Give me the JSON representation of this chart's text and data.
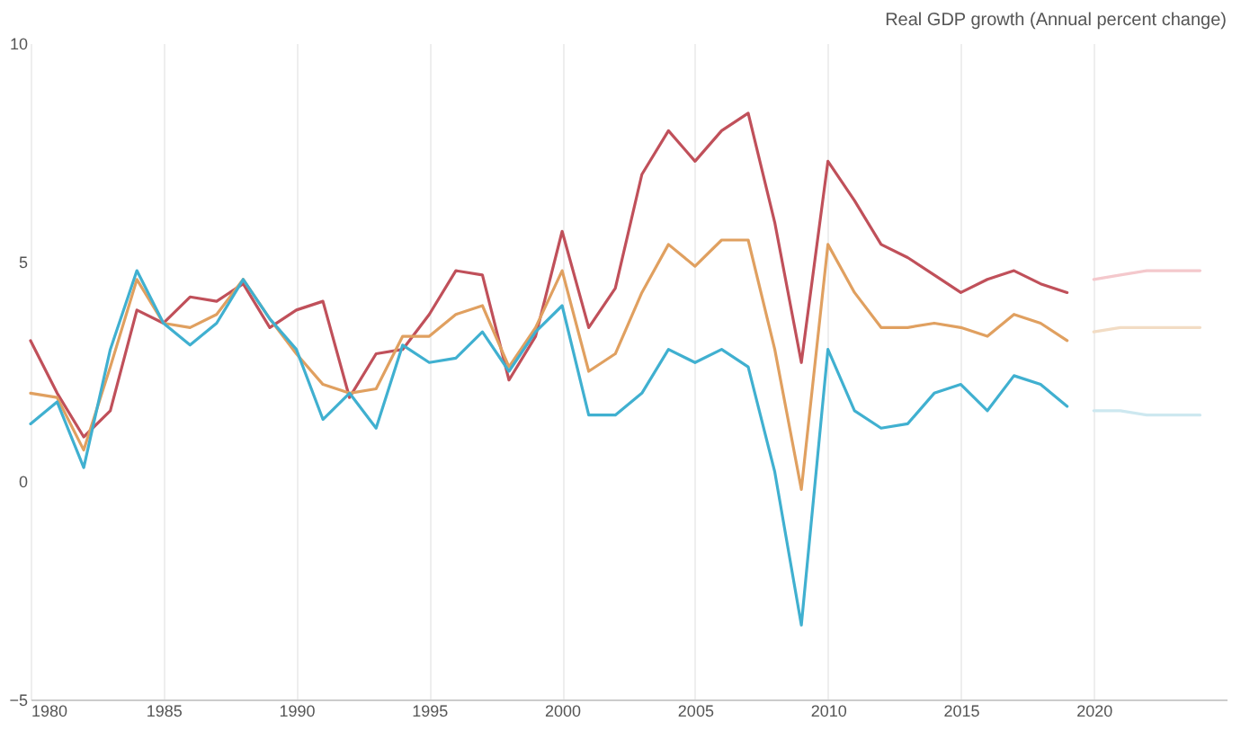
{
  "chart_data": {
    "type": "line",
    "title": "Real GDP growth (Annual percent change)",
    "x": [
      1980,
      1981,
      1982,
      1983,
      1984,
      1985,
      1986,
      1987,
      1988,
      1989,
      1990,
      1991,
      1992,
      1993,
      1994,
      1995,
      1996,
      1997,
      1998,
      1999,
      2000,
      2001,
      2002,
      2003,
      2004,
      2005,
      2006,
      2007,
      2008,
      2009,
      2010,
      2011,
      2012,
      2013,
      2014,
      2015,
      2016,
      2017,
      2018,
      2019
    ],
    "series": [
      {
        "color": "#c0505a",
        "values": [
          3.2,
          2.0,
          1.0,
          1.6,
          3.9,
          3.6,
          4.2,
          4.1,
          4.5,
          3.5,
          3.9,
          4.1,
          1.9,
          2.9,
          3.0,
          3.8,
          4.8,
          4.7,
          2.3,
          3.3,
          5.7,
          3.5,
          4.4,
          7.0,
          8.0,
          7.3,
          8.0,
          8.4,
          5.9,
          2.7,
          7.3,
          6.4,
          5.4,
          5.1,
          4.7,
          4.3,
          4.6,
          4.8,
          4.5,
          4.3
        ]
      },
      {
        "color": "#e0a060",
        "values": [
          2.0,
          1.9,
          0.7,
          2.6,
          4.6,
          3.6,
          3.5,
          3.8,
          4.6,
          3.7,
          2.9,
          2.2,
          2.0,
          2.1,
          3.3,
          3.3,
          3.8,
          4.0,
          2.6,
          3.5,
          4.8,
          2.5,
          2.9,
          4.3,
          5.4,
          4.9,
          5.5,
          5.5,
          3.0,
          -0.2,
          5.4,
          4.3,
          3.5,
          3.5,
          3.6,
          3.5,
          3.3,
          3.8,
          3.6,
          3.2
        ]
      },
      {
        "color": "#40b0d0",
        "values": [
          1.3,
          1.8,
          0.3,
          3.0,
          4.8,
          3.6,
          3.1,
          3.6,
          4.6,
          3.7,
          3.0,
          1.4,
          2.0,
          1.2,
          3.1,
          2.7,
          2.8,
          3.4,
          2.5,
          3.4,
          4.0,
          1.5,
          1.5,
          2.0,
          3.0,
          2.7,
          3.0,
          2.6,
          0.2,
          -3.3,
          3.0,
          1.6,
          1.2,
          1.3,
          2.0,
          2.2,
          1.6,
          2.4,
          2.2,
          1.7
        ]
      },
      {
        "color": "#f4c8cc",
        "x": [
          2020,
          2021,
          2022,
          2023,
          2024
        ],
        "values": [
          4.6,
          4.7,
          4.8,
          4.8,
          4.8
        ]
      },
      {
        "color": "#f2dcc4",
        "x": [
          2020,
          2021,
          2022,
          2023,
          2024
        ],
        "values": [
          3.4,
          3.5,
          3.5,
          3.5,
          3.5
        ]
      },
      {
        "color": "#cde8f0",
        "x": [
          2020,
          2021,
          2022,
          2023,
          2024
        ],
        "values": [
          1.6,
          1.6,
          1.5,
          1.5,
          1.5
        ]
      }
    ],
    "xlim": [
      1980,
      2025
    ],
    "xticks": [
      1980,
      1985,
      1990,
      1995,
      2000,
      2005,
      2010,
      2015,
      2020
    ],
    "ylim": [
      -5,
      10
    ],
    "yticks": [
      -5,
      0,
      5,
      10
    ],
    "grid": "x",
    "line_style": "solid",
    "marker": "none"
  }
}
